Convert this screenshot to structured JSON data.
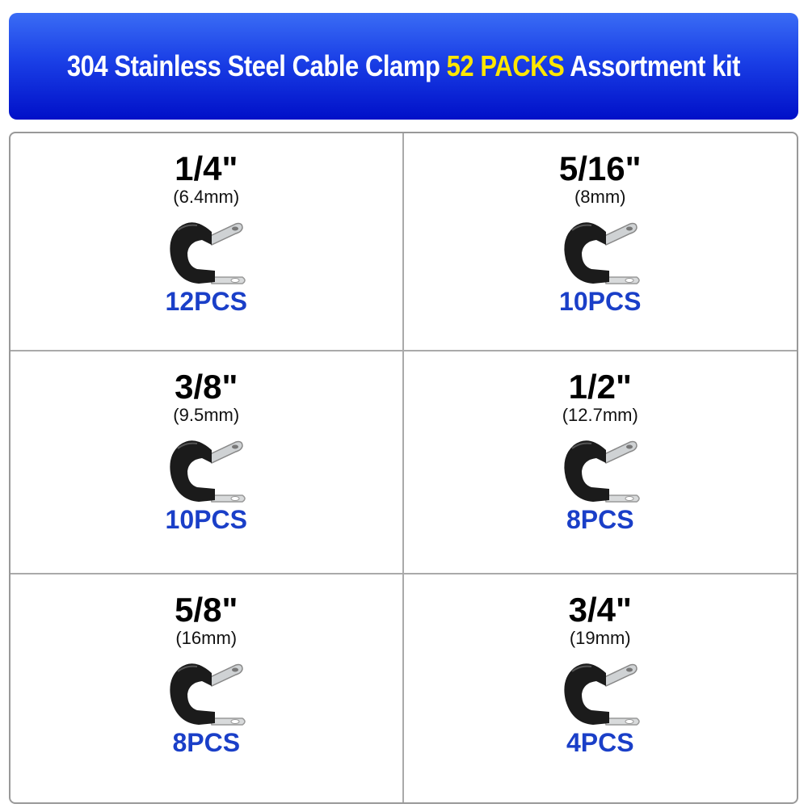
{
  "banner": {
    "title_prefix": "304 Stainless Steel Cable Clamp ",
    "title_highlight": "52 PACKS",
    "title_suffix": " Assortment kit"
  },
  "colors": {
    "banner": "#1a3fe6",
    "highlight": "#ffe600",
    "pcs": "#1a3fc8"
  },
  "items": [
    {
      "size": "1/4\"",
      "metric": "(6.4mm)",
      "qty": "12PCS",
      "icon": "cable-clamp-icon"
    },
    {
      "size": "5/16\"",
      "metric": "(8mm)",
      "qty": "10PCS",
      "icon": "cable-clamp-icon"
    },
    {
      "size": "3/8\"",
      "metric": "(9.5mm)",
      "qty": "10PCS",
      "icon": "cable-clamp-icon"
    },
    {
      "size": "1/2\"",
      "metric": "(12.7mm)",
      "qty": "8PCS",
      "icon": "cable-clamp-icon"
    },
    {
      "size": "5/8\"",
      "metric": "(16mm)",
      "qty": "8PCS",
      "icon": "cable-clamp-icon"
    },
    {
      "size": "3/4\"",
      "metric": "(19mm)",
      "qty": "4PCS",
      "icon": "cable-clamp-icon"
    }
  ]
}
